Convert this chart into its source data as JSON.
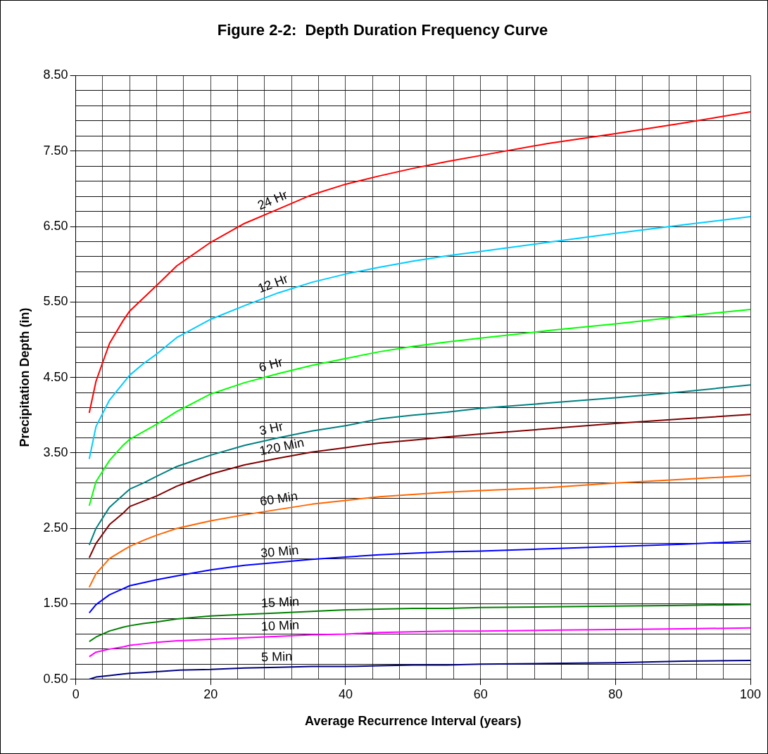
{
  "chart_data": {
    "type": "line",
    "title": "Figure 2-2:  Depth Duration Frequency Curve",
    "xlabel": "Average Recurrence Interval (years)",
    "ylabel": "Precipitation Depth (in)",
    "x": [
      2,
      3,
      5,
      7,
      8,
      10,
      12,
      15,
      20,
      25,
      30,
      35,
      40,
      45,
      50,
      55,
      60,
      70,
      80,
      90,
      100
    ],
    "series": [
      {
        "name": "24 Hr",
        "color": "#ff0000",
        "values": [
          4.03,
          4.45,
          4.95,
          5.25,
          5.38,
          5.55,
          5.72,
          5.98,
          6.29,
          6.54,
          6.73,
          6.92,
          7.06,
          7.17,
          7.27,
          7.36,
          7.44,
          7.6,
          7.73,
          7.87,
          8.02
        ]
      },
      {
        "name": "12 Hr",
        "color": "#00ccff",
        "values": [
          3.42,
          3.85,
          4.2,
          4.42,
          4.53,
          4.68,
          4.81,
          5.03,
          5.27,
          5.45,
          5.62,
          5.76,
          5.87,
          5.96,
          6.04,
          6.11,
          6.17,
          6.29,
          6.41,
          6.52,
          6.63
        ]
      },
      {
        "name": "6 Hr",
        "color": "#00ff00",
        "values": [
          2.8,
          3.12,
          3.4,
          3.6,
          3.68,
          3.78,
          3.88,
          4.05,
          4.28,
          4.43,
          4.55,
          4.66,
          4.75,
          4.84,
          4.91,
          4.97,
          5.02,
          5.12,
          5.21,
          5.31,
          5.4
        ]
      },
      {
        "name": "3 Hr",
        "color": "#008080",
        "values": [
          2.28,
          2.5,
          2.78,
          2.94,
          3.02,
          3.1,
          3.19,
          3.32,
          3.47,
          3.6,
          3.7,
          3.79,
          3.86,
          3.95,
          4.0,
          4.04,
          4.09,
          4.16,
          4.23,
          4.31,
          4.4
        ]
      },
      {
        "name": "120 Min",
        "color": "#800000",
        "values": [
          2.11,
          2.3,
          2.55,
          2.7,
          2.79,
          2.86,
          2.93,
          3.06,
          3.22,
          3.34,
          3.43,
          3.51,
          3.57,
          3.63,
          3.67,
          3.71,
          3.75,
          3.82,
          3.89,
          3.95,
          4.01
        ]
      },
      {
        "name": "60 Min",
        "color": "#ff6600",
        "values": [
          1.72,
          1.9,
          2.1,
          2.21,
          2.26,
          2.34,
          2.41,
          2.5,
          2.6,
          2.68,
          2.75,
          2.82,
          2.87,
          2.92,
          2.95,
          2.98,
          3.0,
          3.04,
          3.1,
          3.15,
          3.2
        ]
      },
      {
        "name": "30 Min",
        "color": "#0000ff",
        "values": [
          1.38,
          1.49,
          1.62,
          1.7,
          1.74,
          1.78,
          1.82,
          1.87,
          1.95,
          2.01,
          2.05,
          2.09,
          2.12,
          2.15,
          2.17,
          2.19,
          2.2,
          2.23,
          2.26,
          2.29,
          2.33
        ]
      },
      {
        "name": "15 Min",
        "color": "#008000",
        "values": [
          1.0,
          1.06,
          1.14,
          1.19,
          1.21,
          1.24,
          1.26,
          1.3,
          1.34,
          1.36,
          1.38,
          1.4,
          1.42,
          1.43,
          1.44,
          1.44,
          1.45,
          1.46,
          1.47,
          1.48,
          1.49
        ]
      },
      {
        "name": "10 Min",
        "color": "#ff00ff",
        "values": [
          0.8,
          0.86,
          0.9,
          0.93,
          0.95,
          0.97,
          0.99,
          1.01,
          1.03,
          1.05,
          1.07,
          1.09,
          1.1,
          1.12,
          1.13,
          1.14,
          1.14,
          1.15,
          1.16,
          1.17,
          1.18
        ]
      },
      {
        "name": "5 Min",
        "color": "#000080",
        "values": [
          0.5,
          0.53,
          0.55,
          0.57,
          0.58,
          0.59,
          0.6,
          0.62,
          0.63,
          0.65,
          0.66,
          0.67,
          0.67,
          0.68,
          0.69,
          0.69,
          0.7,
          0.71,
          0.72,
          0.74,
          0.75
        ]
      }
    ],
    "xlim": [
      0,
      100
    ],
    "xticks": [
      0,
      {
        "value": 4,
        "label": null
      },
      {
        "value": 8,
        "label": null
      },
      {
        "value": 12,
        "label": null
      },
      {
        "value": 16,
        "label": null
      },
      20,
      {
        "value": 24,
        "label": null
      },
      {
        "value": 28,
        "label": null
      },
      {
        "value": 32,
        "label": null
      },
      {
        "value": 36,
        "label": null
      },
      40,
      {
        "value": 44,
        "label": null
      },
      {
        "value": 48,
        "label": null
      },
      {
        "value": 52,
        "label": null
      },
      {
        "value": 56,
        "label": null
      },
      60,
      {
        "value": 64,
        "label": null
      },
      {
        "value": 68,
        "label": null
      },
      {
        "value": 72,
        "label": null
      },
      {
        "value": 76,
        "label": null
      },
      80,
      {
        "value": 84,
        "label": null
      },
      {
        "value": 88,
        "label": null
      },
      {
        "value": 92,
        "label": null
      },
      {
        "value": 96,
        "label": null
      },
      100
    ],
    "ylim": [
      0.5,
      8.5
    ],
    "yticks": [
      {
        "value": 0.5,
        "label": "0.50"
      },
      {
        "value": 0.7,
        "label": null
      },
      {
        "value": 0.9,
        "label": null
      },
      {
        "value": 1.1,
        "label": null
      },
      {
        "value": 1.3,
        "label": null
      },
      {
        "value": 1.5,
        "label": "1.50"
      },
      {
        "value": 1.7,
        "label": null
      },
      {
        "value": 1.9,
        "label": null
      },
      {
        "value": 2.1,
        "label": null
      },
      {
        "value": 2.3,
        "label": null
      },
      {
        "value": 2.5,
        "label": "2.50"
      },
      {
        "value": 2.7,
        "label": null
      },
      {
        "value": 2.9,
        "label": null
      },
      {
        "value": 3.1,
        "label": null
      },
      {
        "value": 3.3,
        "label": null
      },
      {
        "value": 3.5,
        "label": "3.50"
      },
      {
        "value": 3.7,
        "label": null
      },
      {
        "value": 3.9,
        "label": null
      },
      {
        "value": 4.1,
        "label": null
      },
      {
        "value": 4.3,
        "label": null
      },
      {
        "value": 4.5,
        "label": "4.50"
      },
      {
        "value": 4.7,
        "label": null
      },
      {
        "value": 4.9,
        "label": null
      },
      {
        "value": 5.1,
        "label": null
      },
      {
        "value": 5.3,
        "label": null
      },
      {
        "value": 5.5,
        "label": "5.50"
      },
      {
        "value": 5.7,
        "label": null
      },
      {
        "value": 5.9,
        "label": null
      },
      {
        "value": 6.1,
        "label": null
      },
      {
        "value": 6.3,
        "label": null
      },
      {
        "value": 6.5,
        "label": "6.50"
      },
      {
        "value": 6.7,
        "label": null
      },
      {
        "value": 6.9,
        "label": null
      },
      {
        "value": 7.1,
        "label": null
      },
      {
        "value": 7.3,
        "label": null
      },
      {
        "value": 7.5,
        "label": "7.50"
      },
      {
        "value": 7.7,
        "label": null
      },
      {
        "value": 7.9,
        "label": null
      },
      {
        "value": 8.1,
        "label": null
      },
      {
        "value": 8.3,
        "label": null
      },
      {
        "value": 8.5,
        "label": "8.50"
      }
    ],
    "grid": true,
    "legend": false,
    "line_style": "solid"
  }
}
